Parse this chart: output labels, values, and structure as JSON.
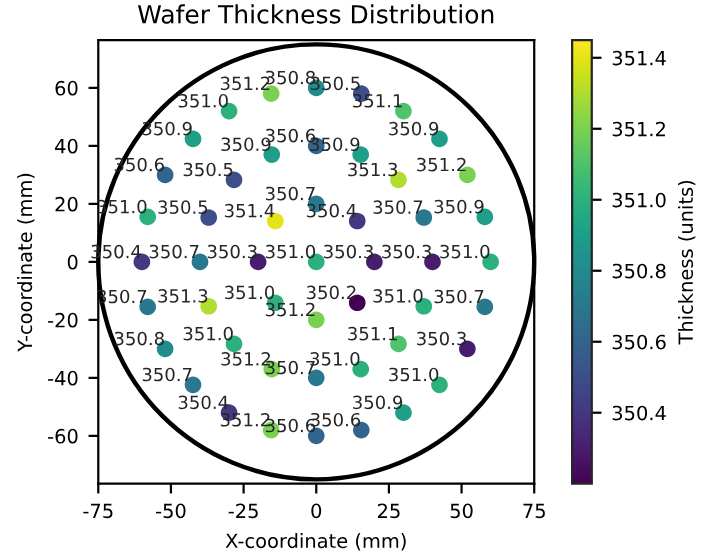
{
  "chart_data": {
    "type": "scatter",
    "title": "Wafer Thickness Distribution",
    "xlabel": "X-coordinate (mm)",
    "ylabel": "Y-coordinate (mm)",
    "clabel": "Thickness (units)",
    "x": [
      0,
      20,
      14.1,
      0,
      -14.1,
      -20,
      -14.1,
      0,
      14.1,
      40,
      37.0,
      28.3,
      15.3,
      0,
      -15.3,
      -28.3,
      -37.0,
      -40,
      -37.0,
      -28.3,
      -15.3,
      0,
      15.3,
      28.3,
      37.0,
      60,
      58.0,
      52.0,
      42.4,
      30,
      15.5,
      0,
      -15.5,
      -30,
      -42.4,
      -52.0,
      -58.0,
      -60,
      -58.0,
      -52.0,
      -42.4,
      -30,
      -15.5,
      0,
      15.5,
      30,
      42.4,
      52.0,
      58.0
    ],
    "values": [
      0,
      0,
      14.1,
      20,
      14.1,
      0,
      -14.1,
      -20,
      -14.1,
      0,
      15.3,
      28.3,
      37.0,
      40,
      37.0,
      28.3,
      15.3,
      0,
      -15.3,
      -28.3,
      -37.0,
      -40,
      -37.0,
      -28.3,
      -15.3,
      0,
      15.5,
      30,
      42.4,
      52.0,
      58.0,
      60,
      58.0,
      52.0,
      42.4,
      30,
      15.5,
      0,
      -15.5,
      -30,
      -42.4,
      -52.0,
      -58.0,
      -60,
      -58.0,
      -52.0,
      -42.4,
      -30,
      -15.5
    ],
    "cvalues": [
      351.0,
      350.3,
      350.4,
      350.7,
      351.4,
      350.3,
      351.0,
      351.2,
      350.2,
      350.3,
      350.7,
      351.3,
      350.9,
      350.6,
      350.9,
      350.5,
      350.5,
      350.7,
      351.3,
      351.0,
      351.2,
      350.7,
      351.0,
      351.1,
      351.0,
      351.0,
      350.9,
      351.2,
      350.9,
      351.1,
      350.5,
      350.8,
      351.2,
      351.0,
      350.9,
      350.6,
      351.0,
      350.4,
      350.7,
      350.8,
      350.7,
      350.4,
      351.2,
      350.6,
      350.6,
      350.9,
      351.0,
      350.3,
      350.7
    ],
    "annotations": [
      {
        "text": "351.0",
        "x": 0,
        "y": 0
      },
      {
        "text": "350.3",
        "x": 20,
        "y": 0
      },
      {
        "text": "350.4",
        "x": 14.1,
        "y": 14.1
      },
      {
        "text": "350.7",
        "x": 0,
        "y": 20
      },
      {
        "text": "351.4",
        "x": -14.1,
        "y": 14.1
      },
      {
        "text": "350.3",
        "x": -20,
        "y": 0
      },
      {
        "text": "351.0",
        "x": -14.1,
        "y": -14.1
      },
      {
        "text": "351.2",
        "x": 0,
        "y": -20
      },
      {
        "text": "350.2",
        "x": 14.1,
        "y": -14.1
      },
      {
        "text": "350.3",
        "x": 40,
        "y": 0
      },
      {
        "text": "350.7",
        "x": 37.0,
        "y": 15.3
      },
      {
        "text": "351.3",
        "x": 28.3,
        "y": 28.3
      },
      {
        "text": "350.9",
        "x": 15.3,
        "y": 37.0
      },
      {
        "text": "350.6",
        "x": 0,
        "y": 40
      },
      {
        "text": "350.9",
        "x": -15.3,
        "y": 37.0
      },
      {
        "text": "350.5",
        "x": -28.3,
        "y": 28.3
      },
      {
        "text": "350.5",
        "x": -37.0,
        "y": 15.3
      },
      {
        "text": "350.7",
        "x": -40,
        "y": 0
      },
      {
        "text": "351.3",
        "x": -37.0,
        "y": -15.3
      },
      {
        "text": "351.0",
        "x": -28.3,
        "y": -28.3
      },
      {
        "text": "351.2",
        "x": -15.3,
        "y": -37.0
      },
      {
        "text": "350.7",
        "x": 0,
        "y": -40
      },
      {
        "text": "351.0",
        "x": 15.3,
        "y": -37.0
      },
      {
        "text": "351.1",
        "x": 28.3,
        "y": -28.3
      },
      {
        "text": "351.0",
        "x": 37.0,
        "y": -15.3
      },
      {
        "text": "351.0",
        "x": 60,
        "y": 0
      },
      {
        "text": "350.9",
        "x": 58.0,
        "y": 15.5
      },
      {
        "text": "351.2",
        "x": 52.0,
        "y": 30
      },
      {
        "text": "350.9",
        "x": 42.4,
        "y": 42.4
      },
      {
        "text": "351.1",
        "x": 30,
        "y": 52.0
      },
      {
        "text": "350.5",
        "x": 15.5,
        "y": 58.0
      },
      {
        "text": "350.8",
        "x": 0,
        "y": 60
      },
      {
        "text": "351.2",
        "x": -15.5,
        "y": 58.0
      },
      {
        "text": "351.0",
        "x": -30,
        "y": 52.0
      },
      {
        "text": "350.9",
        "x": -42.4,
        "y": 42.4
      },
      {
        "text": "350.6",
        "x": -52.0,
        "y": 30
      },
      {
        "text": "351.0",
        "x": -58.0,
        "y": 15.5
      },
      {
        "text": "350.4",
        "x": -60,
        "y": 0
      },
      {
        "text": "350.7",
        "x": -58.0,
        "y": -15.5
      },
      {
        "text": "350.8",
        "x": -52.0,
        "y": -30
      },
      {
        "text": "350.7",
        "x": -42.4,
        "y": -42.4
      },
      {
        "text": "350.4",
        "x": -30,
        "y": -52.0
      },
      {
        "text": "351.2",
        "x": -15.5,
        "y": -58.0
      },
      {
        "text": "350.6",
        "x": 0,
        "y": -60
      },
      {
        "text": "350.6",
        "x": 15.5,
        "y": -58.0
      },
      {
        "text": "350.9",
        "x": 30,
        "y": -52.0
      },
      {
        "text": "351.0",
        "x": 42.4,
        "y": -42.4
      },
      {
        "text": "350.3",
        "x": 52.0,
        "y": -30
      },
      {
        "text": "350.7",
        "x": 58.0,
        "y": -15.5
      }
    ],
    "marker": "circle",
    "grid": false,
    "legend": false,
    "xlim": [
      -75,
      75
    ],
    "xticks": [
      -75,
      -50,
      -25,
      0,
      25,
      50,
      75
    ],
    "ylim": [
      -76.5,
      76.5
    ],
    "yticks": [
      -60,
      -40,
      -20,
      0,
      20,
      40,
      60
    ],
    "clim": [
      350.2,
      351.45
    ],
    "cticks": [
      350.4,
      350.6,
      350.8,
      {
        "value": 351.0,
        "label": "351.0"
      },
      351.2,
      351.4
    ]
  }
}
